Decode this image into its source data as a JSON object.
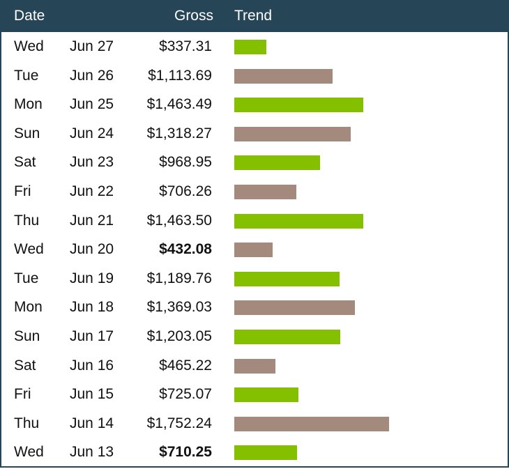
{
  "header": {
    "date": "Date",
    "gross": "Gross",
    "trend": "Trend"
  },
  "colors": {
    "header_bg": "#264557",
    "bar_green": "#84c000",
    "bar_brown": "#a38a7c"
  },
  "trend_max": 1752.24,
  "rows": [
    {
      "day": "Wed",
      "date": "Jun 27",
      "gross": "$337.31",
      "value": 337.31,
      "bold": false,
      "color": "green"
    },
    {
      "day": "Tue",
      "date": "Jun 26",
      "gross": "$1,113.69",
      "value": 1113.69,
      "bold": false,
      "color": "brown"
    },
    {
      "day": "Mon",
      "date": "Jun 25",
      "gross": "$1,463.49",
      "value": 1463.49,
      "bold": false,
      "color": "green"
    },
    {
      "day": "Sun",
      "date": "Jun 24",
      "gross": "$1,318.27",
      "value": 1318.27,
      "bold": false,
      "color": "brown"
    },
    {
      "day": "Sat",
      "date": "Jun 23",
      "gross": "$968.95",
      "value": 968.95,
      "bold": false,
      "color": "green"
    },
    {
      "day": "Fri",
      "date": "Jun 22",
      "gross": "$706.26",
      "value": 706.26,
      "bold": false,
      "color": "brown"
    },
    {
      "day": "Thu",
      "date": "Jun 21",
      "gross": "$1,463.50",
      "value": 1463.5,
      "bold": false,
      "color": "green"
    },
    {
      "day": "Wed",
      "date": "Jun 20",
      "gross": "$432.08",
      "value": 432.08,
      "bold": true,
      "color": "brown"
    },
    {
      "day": "Tue",
      "date": "Jun 19",
      "gross": "$1,189.76",
      "value": 1189.76,
      "bold": false,
      "color": "green"
    },
    {
      "day": "Mon",
      "date": "Jun 18",
      "gross": "$1,369.03",
      "value": 1369.03,
      "bold": false,
      "color": "brown"
    },
    {
      "day": "Sun",
      "date": "Jun 17",
      "gross": "$1,203.05",
      "value": 1203.05,
      "bold": false,
      "color": "green"
    },
    {
      "day": "Sat",
      "date": "Jun 16",
      "gross": "$465.22",
      "value": 465.22,
      "bold": false,
      "color": "brown"
    },
    {
      "day": "Fri",
      "date": "Jun 15",
      "gross": "$725.07",
      "value": 725.07,
      "bold": false,
      "color": "green"
    },
    {
      "day": "Thu",
      "date": "Jun 14",
      "gross": "$1,752.24",
      "value": 1752.24,
      "bold": false,
      "color": "brown"
    },
    {
      "day": "Wed",
      "date": "Jun 13",
      "gross": "$710.25",
      "value": 710.25,
      "bold": true,
      "color": "green"
    }
  ]
}
